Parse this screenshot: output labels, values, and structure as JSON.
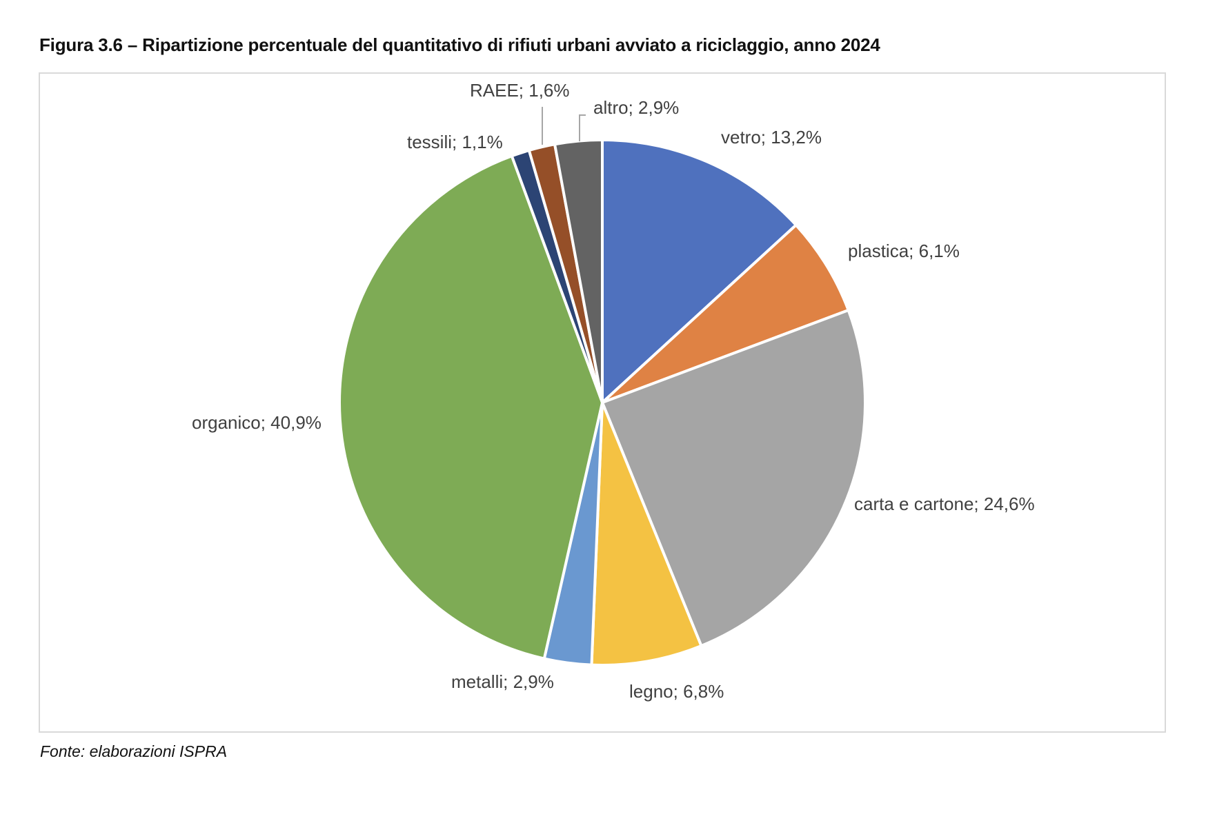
{
  "title": "Figura 3.6 – Ripartizione percentuale del quantitativo di rifiuti urbani avviato a riciclaggio, anno 2024",
  "source": "Fonte: elaborazioni ISPRA",
  "chart_data": {
    "type": "pie",
    "title": "Figura 3.6 – Ripartizione percentuale del quantitativo di rifiuti urbani avviato a riciclaggio, anno 2024",
    "start_angle": "12 o'clock",
    "direction": "clockwise",
    "unit": "%",
    "slices": [
      {
        "name": "vetro",
        "value": 13.2,
        "label": "vetro; 13,2%",
        "color": "#4f71be"
      },
      {
        "name": "plastica",
        "value": 6.1,
        "label": "plastica; 6,1%",
        "color": "#df8244"
      },
      {
        "name": "carta e cartone",
        "value": 24.6,
        "label": "carta e cartone; 24,6%",
        "color": "#a5a5a5"
      },
      {
        "name": "legno",
        "value": 6.8,
        "label": "legno; 6,8%",
        "color": "#f4c243"
      },
      {
        "name": "metalli",
        "value": 2.9,
        "label": "metalli; 2,9%",
        "color": "#6a98d0"
      },
      {
        "name": "organico",
        "value": 40.9,
        "label": "organico; 40,9%",
        "color": "#7eab55"
      },
      {
        "name": "tessili",
        "value": 1.1,
        "label": "tessili; 1,1%",
        "color": "#2c4474"
      },
      {
        "name": "RAEE",
        "value": 1.6,
        "label": "RAEE; 1,6%",
        "color": "#954f28"
      },
      {
        "name": "altro",
        "value": 2.9,
        "label": "altro; 2,9%",
        "color": "#636363"
      }
    ]
  }
}
